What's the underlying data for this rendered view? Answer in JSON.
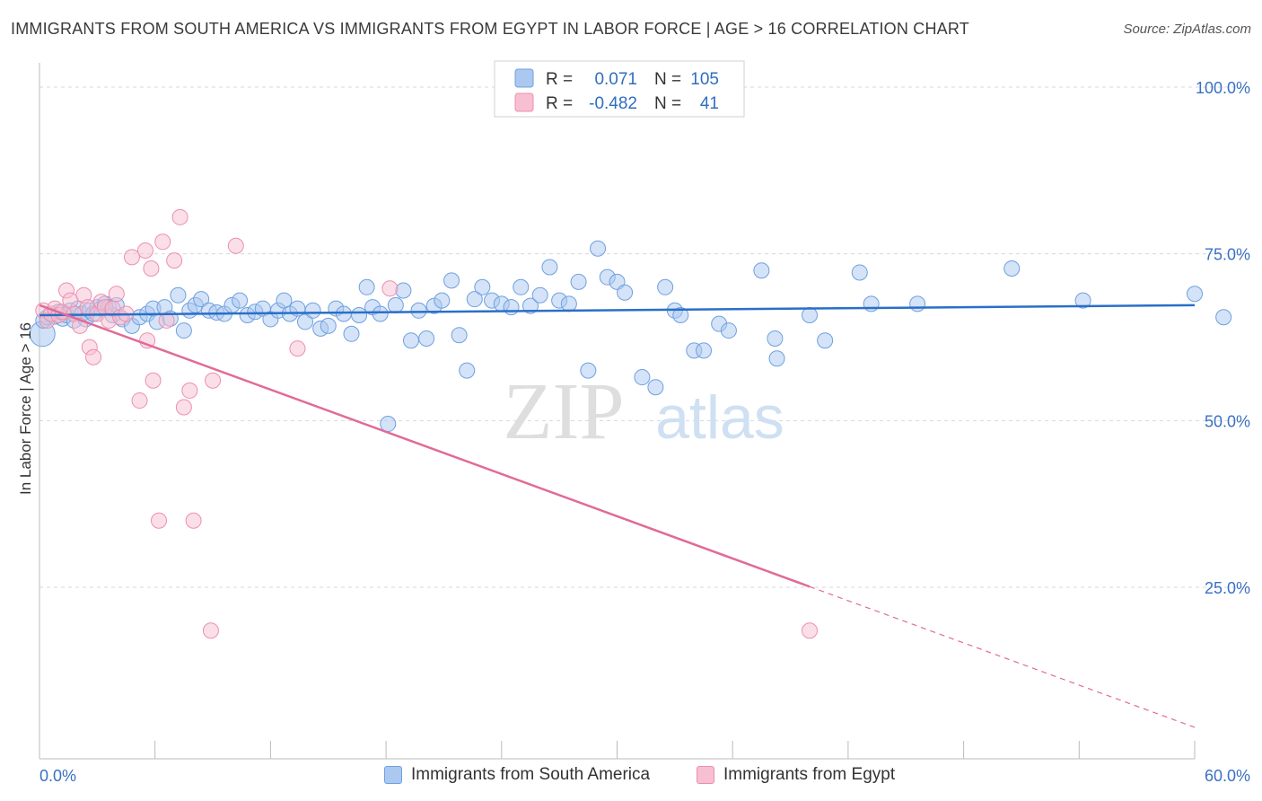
{
  "header": {
    "title": "IMMIGRANTS FROM SOUTH AMERICA VS IMMIGRANTS FROM EGYPT IN LABOR FORCE | AGE > 16 CORRELATION CHART",
    "source": "Source: ZipAtlas.com"
  },
  "colors": {
    "blue": "#6fa0e0",
    "blue_fill": "#aac8f0",
    "blue_line": "#2a6fc8",
    "pink": "#ec8fae",
    "pink_fill": "#f7bfd1",
    "pink_line": "#e06b98",
    "axis_text": "#3a70c4",
    "grid": "#d8d8d8"
  },
  "chart_data": {
    "type": "scatter",
    "title": "IMMIGRANTS FROM SOUTH AMERICA VS IMMIGRANTS FROM EGYPT IN LABOR FORCE | AGE > 16 CORRELATION CHART",
    "xlabel": "",
    "ylabel": "In Labor Force | Age > 16",
    "xlim": [
      0,
      60
    ],
    "ylim": [
      0,
      105
    ],
    "x_tick_labels": [
      "0.0%",
      "60.0%"
    ],
    "y_ticks": [
      25,
      50,
      75,
      100
    ],
    "y_tick_labels": [
      "25.0%",
      "50.0%",
      "75.0%",
      "100.0%"
    ],
    "watermark": {
      "part1": "ZIP",
      "part2": "atlas"
    },
    "stats": [
      {
        "r_label": "R =",
        "r_value": "0.071",
        "n_label": "N =",
        "n_value": "105"
      },
      {
        "r_label": "R =",
        "r_value": "-0.482",
        "n_label": "N =",
        "n_value": "41"
      }
    ],
    "series": [
      {
        "name": "Immigrants from South America",
        "color": "blue",
        "trend": {
          "x0": 0,
          "y0": 65.8,
          "x1": 60,
          "y1": 67.3,
          "solid_until": 60
        },
        "points": [
          [
            0.1,
            63.0
          ],
          [
            0.2,
            65.0
          ],
          [
            0.4,
            65.5
          ],
          [
            0.6,
            66.0
          ],
          [
            0.8,
            65.6
          ],
          [
            1.0,
            66.3
          ],
          [
            1.2,
            65.3
          ],
          [
            1.4,
            65.8
          ],
          [
            1.6,
            66.5
          ],
          [
            1.8,
            65.0
          ],
          [
            2.0,
            66.8
          ],
          [
            2.2,
            66.0
          ],
          [
            2.4,
            65.2
          ],
          [
            2.6,
            66.5
          ],
          [
            2.8,
            66.0
          ],
          [
            3.0,
            67.0
          ],
          [
            3.2,
            66.8
          ],
          [
            3.4,
            67.5
          ],
          [
            3.6,
            67.0
          ],
          [
            3.8,
            65.8
          ],
          [
            4.0,
            67.3
          ],
          [
            4.3,
            65.2
          ],
          [
            4.8,
            64.2
          ],
          [
            5.2,
            65.5
          ],
          [
            5.6,
            66.0
          ],
          [
            5.9,
            66.8
          ],
          [
            6.1,
            64.8
          ],
          [
            6.5,
            67.0
          ],
          [
            6.8,
            65.3
          ],
          [
            7.2,
            68.8
          ],
          [
            7.5,
            63.5
          ],
          [
            7.8,
            66.5
          ],
          [
            8.1,
            67.3
          ],
          [
            8.4,
            68.2
          ],
          [
            8.8,
            66.5
          ],
          [
            9.2,
            66.2
          ],
          [
            9.6,
            66.0
          ],
          [
            10.0,
            67.3
          ],
          [
            10.4,
            68.0
          ],
          [
            10.8,
            65.8
          ],
          [
            11.2,
            66.3
          ],
          [
            11.6,
            66.8
          ],
          [
            12.0,
            65.2
          ],
          [
            12.4,
            66.5
          ],
          [
            12.7,
            68.0
          ],
          [
            13.0,
            66.0
          ],
          [
            13.4,
            66.8
          ],
          [
            13.8,
            64.8
          ],
          [
            14.2,
            66.5
          ],
          [
            14.6,
            63.8
          ],
          [
            15.0,
            64.2
          ],
          [
            15.4,
            66.8
          ],
          [
            15.8,
            66.0
          ],
          [
            16.2,
            63.0
          ],
          [
            16.6,
            65.8
          ],
          [
            17.0,
            70.0
          ],
          [
            17.3,
            67.0
          ],
          [
            17.7,
            66.0
          ],
          [
            18.1,
            49.5
          ],
          [
            18.5,
            67.3
          ],
          [
            18.9,
            69.5
          ],
          [
            19.3,
            62.0
          ],
          [
            19.7,
            66.5
          ],
          [
            20.1,
            62.3
          ],
          [
            20.5,
            67.2
          ],
          [
            20.9,
            68.0
          ],
          [
            21.4,
            71.0
          ],
          [
            21.8,
            62.8
          ],
          [
            22.2,
            57.5
          ],
          [
            22.6,
            68.2
          ],
          [
            23.0,
            70.0
          ],
          [
            23.5,
            68.0
          ],
          [
            24.0,
            67.5
          ],
          [
            24.5,
            67.0
          ],
          [
            25.0,
            70.0
          ],
          [
            25.5,
            67.2
          ],
          [
            26.0,
            68.8
          ],
          [
            26.5,
            73.0
          ],
          [
            27.0,
            68.0
          ],
          [
            27.5,
            67.5
          ],
          [
            28.0,
            70.8
          ],
          [
            28.5,
            57.5
          ],
          [
            29.0,
            75.8
          ],
          [
            29.5,
            71.5
          ],
          [
            30.0,
            70.8
          ],
          [
            30.4,
            69.2
          ],
          [
            31.3,
            56.5
          ],
          [
            32.0,
            55.0
          ],
          [
            32.5,
            70.0
          ],
          [
            33.0,
            66.5
          ],
          [
            33.3,
            65.8
          ],
          [
            34.0,
            60.5
          ],
          [
            34.5,
            60.5
          ],
          [
            35.3,
            64.5
          ],
          [
            35.8,
            63.5
          ],
          [
            37.5,
            72.5
          ],
          [
            38.2,
            62.3
          ],
          [
            38.3,
            59.3
          ],
          [
            40.0,
            65.8
          ],
          [
            40.8,
            62.0
          ],
          [
            42.6,
            72.2
          ],
          [
            43.2,
            67.5
          ],
          [
            45.6,
            67.5
          ],
          [
            50.5,
            72.8
          ],
          [
            54.2,
            68.0
          ],
          [
            60.0,
            69.0
          ],
          [
            61.5,
            65.5
          ]
        ]
      },
      {
        "name": "Immigrants from Egypt",
        "color": "pink",
        "trend": {
          "x0": 0,
          "y0": 67.3,
          "x1": 60,
          "y1": 4.0,
          "solid_until": 40
        },
        "points": [
          [
            0.2,
            66.5
          ],
          [
            0.4,
            65.0
          ],
          [
            0.6,
            66.0
          ],
          [
            0.8,
            66.8
          ],
          [
            1.0,
            65.8
          ],
          [
            1.2,
            66.3
          ],
          [
            1.4,
            69.5
          ],
          [
            1.6,
            68.0
          ],
          [
            1.8,
            66.0
          ],
          [
            2.1,
            64.2
          ],
          [
            2.3,
            68.8
          ],
          [
            2.5,
            67.0
          ],
          [
            2.6,
            61.0
          ],
          [
            2.8,
            59.5
          ],
          [
            3.0,
            66.0
          ],
          [
            3.2,
            67.8
          ],
          [
            3.4,
            67.0
          ],
          [
            3.6,
            65.0
          ],
          [
            3.8,
            66.8
          ],
          [
            4.0,
            69.0
          ],
          [
            4.2,
            65.5
          ],
          [
            4.5,
            66.0
          ],
          [
            4.8,
            74.5
          ],
          [
            5.2,
            53.0
          ],
          [
            5.5,
            75.5
          ],
          [
            5.6,
            62.0
          ],
          [
            5.8,
            72.8
          ],
          [
            5.9,
            56.0
          ],
          [
            6.2,
            35.0
          ],
          [
            6.4,
            76.8
          ],
          [
            6.6,
            65.0
          ],
          [
            7.0,
            74.0
          ],
          [
            7.3,
            80.5
          ],
          [
            7.5,
            52.0
          ],
          [
            7.8,
            54.5
          ],
          [
            8.0,
            35.0
          ],
          [
            8.9,
            18.5
          ],
          [
            9.0,
            56.0
          ],
          [
            10.2,
            76.2
          ],
          [
            13.4,
            60.8
          ],
          [
            18.2,
            69.8
          ],
          [
            40.0,
            18.5
          ]
        ]
      }
    ]
  },
  "legend": {
    "items": [
      {
        "label": "Immigrants from South America"
      },
      {
        "label": "Immigrants from Egypt"
      }
    ]
  }
}
